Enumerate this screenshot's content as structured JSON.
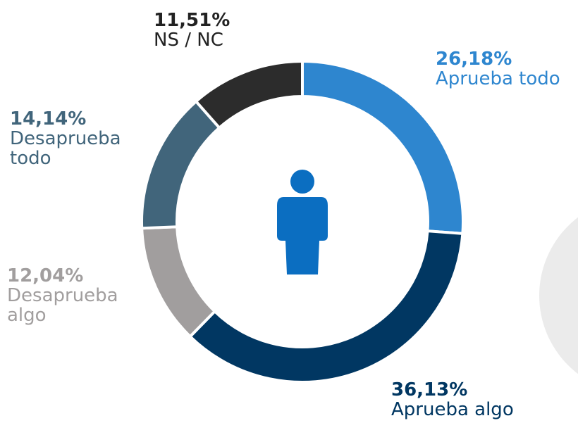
{
  "chart_data": {
    "type": "pie",
    "categories": [
      "Aprueba todo",
      "Aprueba algo",
      "Desaprueba algo",
      "Desaprueba todo",
      "NS / NC"
    ],
    "values": [
      26.18,
      36.13,
      12.04,
      14.14,
      11.51
    ],
    "value_labels": [
      "26,18%",
      "36,13%",
      "12,04%",
      "14,14%",
      "11,51%"
    ],
    "colors": [
      "#2e86cf",
      "#013762",
      "#a19e9e",
      "#41657b",
      "#2c2c2c"
    ]
  }
}
